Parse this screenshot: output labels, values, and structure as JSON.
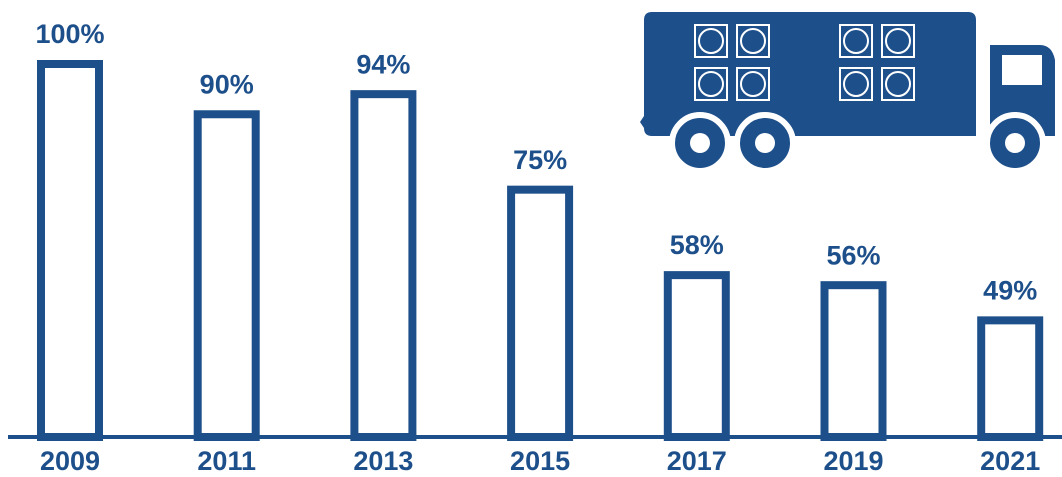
{
  "chart_data": {
    "type": "bar",
    "categories": [
      "2009",
      "2011",
      "2013",
      "2015",
      "2017",
      "2019",
      "2021"
    ],
    "values": [
      100,
      90,
      94,
      75,
      58,
      56,
      49
    ],
    "value_labels": [
      "100%",
      "90%",
      "94%",
      "75%",
      "58%",
      "56%",
      "49%"
    ],
    "color": "#1d4f8b",
    "ylim": [
      25,
      100
    ]
  }
}
